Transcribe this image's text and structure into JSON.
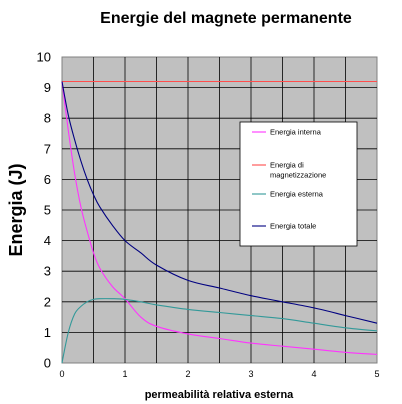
{
  "chart_data": {
    "type": "line",
    "title": "Energie del magnete permanente",
    "xlabel": "permeabilità relativa esterna",
    "ylabel": "Energia (J)",
    "xlim": [
      0,
      5
    ],
    "ylim": [
      0,
      10
    ],
    "x_ticks": [
      "0",
      "1",
      "2",
      "3",
      "4",
      "5"
    ],
    "y_ticks": [
      "0",
      "1",
      "2",
      "3",
      "4",
      "5",
      "6",
      "7",
      "8",
      "9",
      "10"
    ],
    "x_grid_step": 0.5,
    "grid": true,
    "legend_position": "right",
    "series": [
      {
        "name": "Energia interna",
        "color": "#ff33ff",
        "x": [
          0,
          0.1,
          0.2,
          0.3,
          0.4,
          0.5,
          0.6,
          0.8,
          1.0,
          1.25,
          1.5,
          2.0,
          2.5,
          3.0,
          3.5,
          4.0,
          4.5,
          5.0
        ],
        "y": [
          9.2,
          7.6,
          6.2,
          5.1,
          4.3,
          3.6,
          3.1,
          2.5,
          2.1,
          1.5,
          1.2,
          0.95,
          0.8,
          0.65,
          0.55,
          0.45,
          0.35,
          0.28
        ]
      },
      {
        "name": "Energia di magnetizzazione",
        "color": "#ff4d4d",
        "x": [
          0,
          5
        ],
        "y": [
          9.2,
          9.2
        ]
      },
      {
        "name": "Energia  esterna",
        "color": "#339999",
        "x": [
          0,
          0.1,
          0.2,
          0.3,
          0.4,
          0.5,
          0.6,
          0.8,
          1.0,
          1.25,
          1.5,
          2.0,
          2.5,
          3.0,
          3.5,
          4.0,
          4.5,
          5.0
        ],
        "y": [
          0,
          1.0,
          1.6,
          1.85,
          2.0,
          2.08,
          2.1,
          2.1,
          2.08,
          2.0,
          1.9,
          1.75,
          1.65,
          1.55,
          1.45,
          1.3,
          1.15,
          1.05
        ]
      },
      {
        "name": "Energia totale",
        "color": "#000080",
        "x": [
          0,
          0.1,
          0.2,
          0.3,
          0.4,
          0.5,
          0.6,
          0.8,
          1.0,
          1.25,
          1.5,
          2.0,
          2.5,
          3.0,
          3.5,
          4.0,
          4.5,
          5.0
        ],
        "y": [
          9.2,
          8.1,
          7.3,
          6.6,
          6.0,
          5.5,
          5.1,
          4.5,
          4.0,
          3.6,
          3.2,
          2.7,
          2.45,
          2.2,
          2.0,
          1.8,
          1.55,
          1.3
        ]
      }
    ]
  }
}
